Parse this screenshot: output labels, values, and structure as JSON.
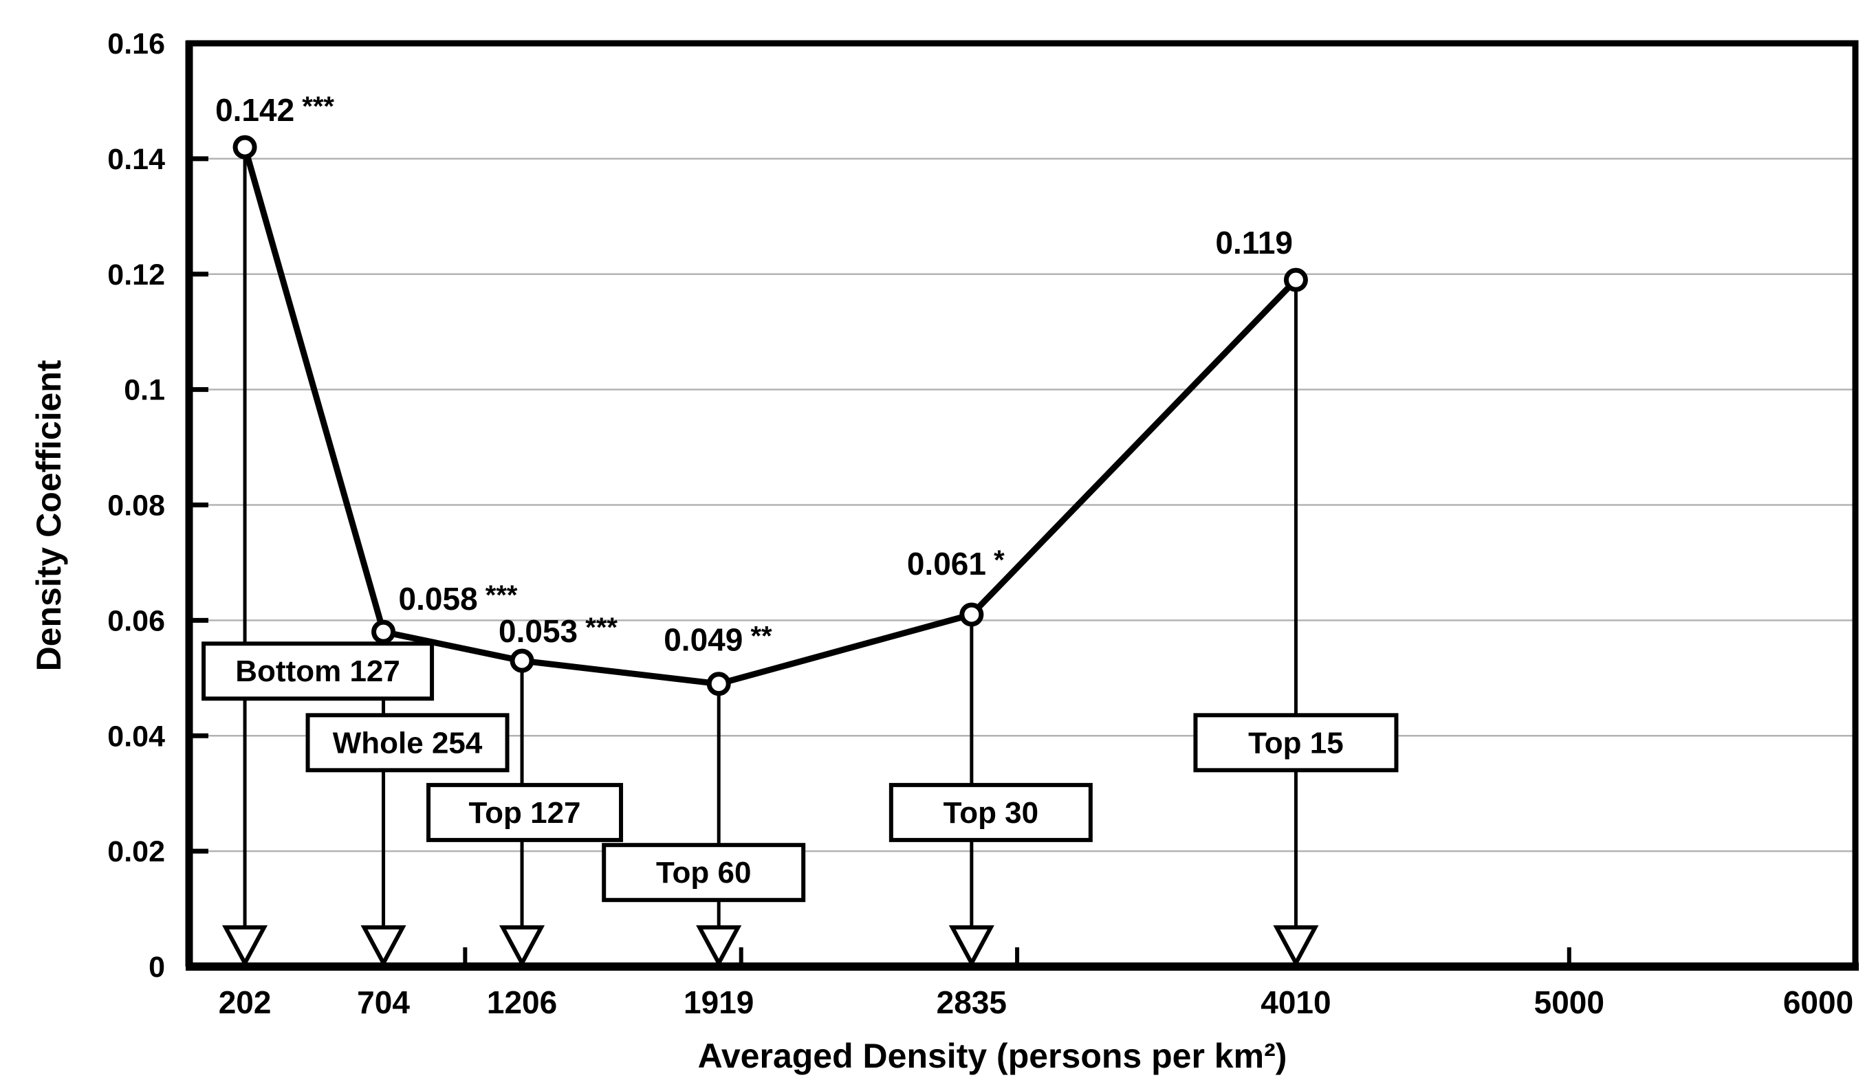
{
  "chart_data": {
    "type": "line",
    "title": "",
    "xlabel": "Averaged Density (persons per km²)",
    "ylabel": "Density Coefficient",
    "xlim": [
      0,
      6037
    ],
    "ylim": [
      0,
      0.16
    ],
    "grid": "horizontal",
    "legend": "none",
    "x_ticks": [
      {
        "value": 202,
        "label": "202"
      },
      {
        "value": 704,
        "label": "704"
      },
      {
        "value": 1206,
        "label": "1206"
      },
      {
        "value": 1919,
        "label": "1919"
      },
      {
        "value": 2835,
        "label": "2835"
      },
      {
        "value": 4010,
        "label": "4010"
      },
      {
        "value": 5000,
        "label": "5000"
      },
      {
        "value": 6000,
        "label": "6000"
      }
    ],
    "x_minor_ticks": [
      1000,
      2000,
      3000,
      5000
    ],
    "y_ticks": [
      {
        "value": 0,
        "label": "0"
      },
      {
        "value": 0.02,
        "label": "0.02"
      },
      {
        "value": 0.04,
        "label": "0.04"
      },
      {
        "value": 0.06,
        "label": "0.06"
      },
      {
        "value": 0.08,
        "label": "0.08"
      },
      {
        "value": 0.1,
        "label": "0.1"
      },
      {
        "value": 0.12,
        "label": "0.12"
      },
      {
        "value": 0.14,
        "label": "0.14"
      },
      {
        "value": 0.16,
        "label": "0.16"
      }
    ],
    "series": [
      {
        "name": "Density Coefficient",
        "marker": "open-circle",
        "color": "#000000",
        "points": [
          {
            "x": 202,
            "y": 0.142,
            "value_label": "0.142",
            "significance": "***",
            "annotation": "Bottom 127"
          },
          {
            "x": 704,
            "y": 0.058,
            "value_label": "0.058",
            "significance": "***",
            "annotation": "Whole 254"
          },
          {
            "x": 1206,
            "y": 0.053,
            "value_label": "0.053",
            "significance": "***",
            "annotation": "Top 127"
          },
          {
            "x": 1919,
            "y": 0.049,
            "value_label": "0.049",
            "significance": "**",
            "annotation": "Top 60"
          },
          {
            "x": 2835,
            "y": 0.061,
            "value_label": "0.061",
            "significance": "*",
            "annotation": "Top 30"
          },
          {
            "x": 4010,
            "y": 0.119,
            "value_label": "0.119",
            "significance": "",
            "annotation": "Top 15"
          }
        ]
      }
    ],
    "colors": {
      "line": "#000000",
      "grid": "#b3b3b3",
      "background": "#ffffff",
      "text": "#000000"
    },
    "layout_hints": {
      "drop_arrows_to_axis": true,
      "annotation_box_value_centers": [
        0.0512,
        0.0388,
        0.0267,
        0.0163,
        0.0267,
        0.0388
      ],
      "annotation_box_x_offsets": [
        106,
        35,
        4,
        -22,
        28,
        0
      ],
      "annotation_box_widths": [
        332,
        290,
        280,
        290,
        290,
        292
      ],
      "value_label_dx": [
        -43,
        22,
        -34,
        -80,
        -94,
        -117
      ],
      "value_label_dy": [
        -38,
        -32,
        -27,
        -48,
        -58,
        -38
      ]
    }
  }
}
